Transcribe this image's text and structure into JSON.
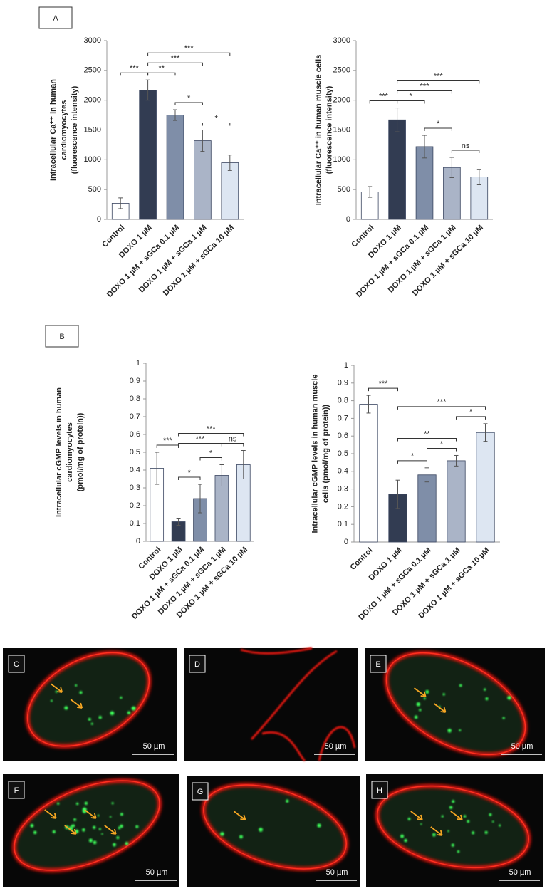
{
  "panels": [
    "A",
    "B"
  ],
  "chart_data": [
    {
      "type": "bar",
      "ylabel": [
        "Intracellular Ca⁺⁺ in human",
        "cardiomyocytes",
        "(fluorescence intensity)"
      ],
      "categories": [
        "Control",
        "DOXO 1 µM",
        "DOXO 1 µM + sGCa 0.1 µM",
        "DOXO 1 µM + sGCa  1 µM",
        "DOXO 1 µM + sGCa 10 µM"
      ],
      "values": [
        270,
        2170,
        1750,
        1320,
        950
      ],
      "errors": [
        90,
        170,
        90,
        180,
        130
      ],
      "colors": [
        "#ffffff",
        "#323c52",
        "#7f8ea8",
        "#aab4c7",
        "#dde6f2"
      ],
      "ylim": [
        0,
        3000
      ],
      "yticks": [
        0,
        500,
        1000,
        1500,
        2000,
        2500,
        3000
      ],
      "brackets": [
        {
          "pair": [
            0,
            1
          ],
          "label": "***"
        },
        {
          "pair": [
            1,
            2
          ],
          "label": "**"
        },
        {
          "pair": [
            2,
            3
          ],
          "label": "*"
        },
        {
          "pair": [
            3,
            4
          ],
          "label": "*"
        },
        {
          "pair": [
            1,
            3
          ],
          "label": "***"
        },
        {
          "pair": [
            1,
            4
          ],
          "label": "***"
        }
      ]
    },
    {
      "type": "bar",
      "ylabel": [
        "Intracellular Ca⁺⁺ in human muscle cells",
        "(fluorescence intensity)"
      ],
      "categories": [
        "Control",
        "DOXO 1 µM",
        "DOXO 1 µM + sGCa 0.1 µM",
        "DOXO 1 µM + sGCa  1 µM",
        "DOXO 1 µM + sGCa 10 µM"
      ],
      "values": [
        460,
        1670,
        1220,
        870,
        710
      ],
      "errors": [
        90,
        200,
        190,
        170,
        130
      ],
      "colors": [
        "#ffffff",
        "#323c52",
        "#7f8ea8",
        "#aab4c7",
        "#dde6f2"
      ],
      "ylim": [
        0,
        3000
      ],
      "yticks": [
        0,
        500,
        1000,
        1500,
        2000,
        2500,
        3000
      ],
      "brackets": [
        {
          "pair": [
            0,
            1
          ],
          "label": "***"
        },
        {
          "pair": [
            1,
            2
          ],
          "label": "*"
        },
        {
          "pair": [
            2,
            3
          ],
          "label": "*"
        },
        {
          "pair": [
            3,
            4
          ],
          "label": "ns"
        },
        {
          "pair": [
            1,
            3
          ],
          "label": "***"
        },
        {
          "pair": [
            1,
            4
          ],
          "label": "***"
        }
      ]
    },
    {
      "type": "bar",
      "ylabel": [
        "Intracellular cGMP levels in human",
        "cardiomyocytes",
        "(pmol/mg of protein))"
      ],
      "categories": [
        "Control",
        "DOXO 1 µM",
        "DOXO 1 µM + sGCa 0.1 µM",
        "DOXO 1 µM + sGCa  1 µM",
        "DOXO 1 µM + sGCa 10 µM"
      ],
      "values": [
        0.41,
        0.11,
        0.24,
        0.37,
        0.43
      ],
      "errors": [
        0.09,
        0.02,
        0.08,
        0.06,
        0.08
      ],
      "colors": [
        "#ffffff",
        "#323c52",
        "#7f8ea8",
        "#aab4c7",
        "#dde6f2"
      ],
      "ylim": [
        0,
        1
      ],
      "yticks": [
        0,
        0.1,
        0.2,
        0.3,
        0.4,
        0.5,
        0.6,
        0.7,
        0.8,
        0.9,
        1
      ],
      "brackets": [
        {
          "pair": [
            0,
            1
          ],
          "label": "***"
        },
        {
          "pair": [
            1,
            2
          ],
          "label": "*"
        },
        {
          "pair": [
            2,
            3
          ],
          "label": "*"
        },
        {
          "pair": [
            3,
            4
          ],
          "label": "ns"
        },
        {
          "pair": [
            1,
            3
          ],
          "label": "***"
        },
        {
          "pair": [
            1,
            4
          ],
          "label": "***"
        }
      ]
    },
    {
      "type": "bar",
      "ylabel": [
        "Intracellular cGMP levels in human muscle",
        "cells (pmol/mg of protein))"
      ],
      "categories": [
        "Control",
        "DOXO 1 µM",
        "DOXO 1 µM + sGCa 0.1 µM",
        "DOXO 1 µM + sGCa  1 µM",
        "DOXO 1 µM + sGCa 10 µM"
      ],
      "values": [
        0.78,
        0.27,
        0.38,
        0.46,
        0.62
      ],
      "errors": [
        0.05,
        0.08,
        0.04,
        0.03,
        0.05
      ],
      "colors": [
        "#ffffff",
        "#323c52",
        "#7f8ea8",
        "#aab4c7",
        "#dde6f2"
      ],
      "ylim": [
        0,
        1
      ],
      "yticks": [
        0,
        0.1,
        0.2,
        0.3,
        0.4,
        0.5,
        0.6,
        0.7,
        0.8,
        0.9,
        1
      ],
      "brackets": [
        {
          "pair": [
            0,
            1
          ],
          "label": "***"
        },
        {
          "pair": [
            1,
            2
          ],
          "label": "*"
        },
        {
          "pair": [
            2,
            3
          ],
          "label": "*"
        },
        {
          "pair": [
            3,
            4
          ],
          "label": "*"
        },
        {
          "pair": [
            1,
            3
          ],
          "label": "**"
        },
        {
          "pair": [
            1,
            4
          ],
          "label": "***"
        }
      ]
    }
  ],
  "images": [
    {
      "label": "C",
      "scale_bar": "50 µm"
    },
    {
      "label": "D",
      "scale_bar": "50 µm"
    },
    {
      "label": "E",
      "scale_bar": "50 µm"
    },
    {
      "label": "F",
      "scale_bar": "50 µm"
    },
    {
      "label": "G",
      "scale_bar": "50 µm"
    },
    {
      "label": "H",
      "scale_bar": "50 µm"
    }
  ]
}
